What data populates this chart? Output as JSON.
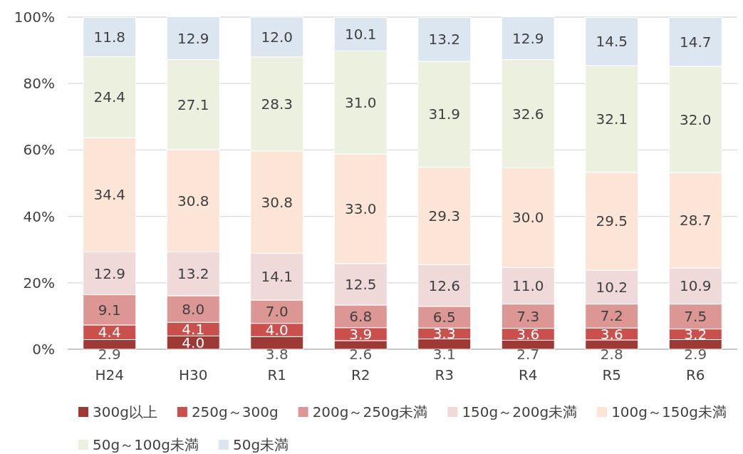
{
  "chart_data": {
    "type": "bar",
    "stacked": true,
    "categories": [
      "H24",
      "H30",
      "R1",
      "R2",
      "R3",
      "R4",
      "R5",
      "R6"
    ],
    "series": [
      {
        "name": "300g以上",
        "color": "#9e3a35",
        "values": [
          2.9,
          4.0,
          3.8,
          2.6,
          3.1,
          2.7,
          2.8,
          2.9
        ],
        "value_labels": [
          "2.9",
          "4.0",
          "3.8",
          "2.6",
          "3.1",
          "2.7",
          "2.8",
          "2.9"
        ]
      },
      {
        "name": "250g～300g",
        "color": "#c9504c",
        "values": [
          4.4,
          4.1,
          4.0,
          3.9,
          3.3,
          3.6,
          3.6,
          3.2
        ],
        "value_labels": [
          "4.4",
          "4.1",
          "4.0",
          "3.9",
          "3.3",
          "3.6",
          "3.6",
          "3.2"
        ]
      },
      {
        "name": "200g～250g未満",
        "color": "#dc9693",
        "values": [
          9.1,
          8.0,
          7.0,
          6.8,
          6.5,
          7.3,
          7.2,
          7.5
        ],
        "value_labels": [
          "9.1",
          "8.0",
          "7.0",
          "6.8",
          "6.5",
          "7.3",
          "7.2",
          "7.5"
        ]
      },
      {
        "name": "150g～200g未満",
        "color": "#f0d9d9",
        "values": [
          12.9,
          13.2,
          14.1,
          12.5,
          12.6,
          11.0,
          10.2,
          10.9
        ],
        "value_labels": [
          "12.9",
          "13.2",
          "14.1",
          "12.5",
          "12.6",
          "11.0",
          "10.2",
          "10.9"
        ]
      },
      {
        "name": "100g～150g未満",
        "color": "#fce5d6",
        "values": [
          34.4,
          30.8,
          30.8,
          33.0,
          29.3,
          30.0,
          29.5,
          28.7
        ],
        "value_labels": [
          "34.4",
          "30.8",
          "30.8",
          "33.0",
          "29.3",
          "30.0",
          "29.5",
          "28.7"
        ]
      },
      {
        "name": "50g～100g未満",
        "color": "#ebf0df",
        "values": [
          24.4,
          27.1,
          28.3,
          31.0,
          31.9,
          32.6,
          32.1,
          32.0
        ],
        "value_labels": [
          "24.4",
          "27.1",
          "28.3",
          "31.0",
          "31.9",
          "32.6",
          "32.1",
          "32.0"
        ]
      },
      {
        "name": "50g未満",
        "color": "#dce6f1",
        "values": [
          11.8,
          12.9,
          12.0,
          10.1,
          13.2,
          12.9,
          14.5,
          14.7
        ],
        "value_labels": [
          "11.8",
          "12.9",
          "12.0",
          "10.1",
          "13.2",
          "12.9",
          "14.5",
          "14.7"
        ]
      }
    ],
    "ylim": [
      0,
      100
    ],
    "yticks": [
      {
        "value": 0,
        "label": "0%"
      },
      {
        "value": 20,
        "label": "20%"
      },
      {
        "value": 40,
        "label": "40%"
      },
      {
        "value": 60,
        "label": "60%"
      },
      {
        "value": 80,
        "label": "80%"
      },
      {
        "value": 100,
        "label": "100%"
      }
    ],
    "grid": "y",
    "legend": "bottom"
  }
}
